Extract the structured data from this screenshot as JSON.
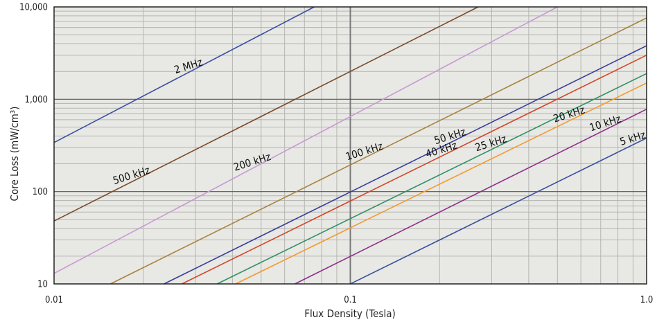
{
  "chart_data": {
    "type": "line",
    "xscale": "log",
    "yscale": "log",
    "xlim": [
      0.01,
      1.0
    ],
    "ylim": [
      10,
      10000
    ],
    "xlabel": "Flux Density (Tesla)",
    "ylabel": "Core Loss (mW/cm³)",
    "grid": true,
    "x_ticks": [
      {
        "value": 0.01,
        "label": "0.01"
      },
      {
        "value": 0.1,
        "label": "0.1"
      },
      {
        "value": 1.0,
        "label": "1.0"
      }
    ],
    "y_ticks": [
      {
        "value": 10,
        "label": "10"
      },
      {
        "value": 100,
        "label": "100"
      },
      {
        "value": 1000,
        "label": "1,000"
      },
      {
        "value": 10000,
        "label": "10,000"
      }
    ],
    "series": [
      {
        "name": "2 MHz",
        "color": "#3a4fa0",
        "x": [
          0.01,
          0.0755
        ],
        "y": [
          340,
          10000
        ]
      },
      {
        "name": "500 kHz",
        "color": "#7a4a2a",
        "x": [
          0.01,
          0.27
        ],
        "y": [
          48,
          10000
        ]
      },
      {
        "name": "200 kHz",
        "color": "#c79ad2",
        "x": [
          0.01,
          0.5
        ],
        "y": [
          13,
          10000
        ]
      },
      {
        "name": "100 kHz",
        "color": "#a8823c",
        "x": [
          0.0155,
          1.0
        ],
        "y": [
          10,
          7600
        ]
      },
      {
        "name": "50 kHz",
        "color": "#3a3f9a",
        "x": [
          0.0235,
          1.0
        ],
        "y": [
          10,
          3800
        ]
      },
      {
        "name": "40 kHz",
        "color": "#d2462a",
        "x": [
          0.027,
          1.0
        ],
        "y": [
          10,
          3000
        ]
      },
      {
        "name": "25 kHz",
        "color": "#2e8f66",
        "x": [
          0.0355,
          1.0
        ],
        "y": [
          10,
          1900
        ]
      },
      {
        "name": "20 kHz",
        "color": "#f39a2e",
        "x": [
          0.041,
          1.0
        ],
        "y": [
          10,
          1500
        ]
      },
      {
        "name": "10 kHz",
        "color": "#8a2f8a",
        "x": [
          0.065,
          1.0
        ],
        "y": [
          10,
          780
        ]
      },
      {
        "name": "5 kHz",
        "color": "#3a4fa0",
        "x": [
          0.1,
          1.0
        ],
        "y": [
          10,
          380
        ]
      }
    ]
  }
}
